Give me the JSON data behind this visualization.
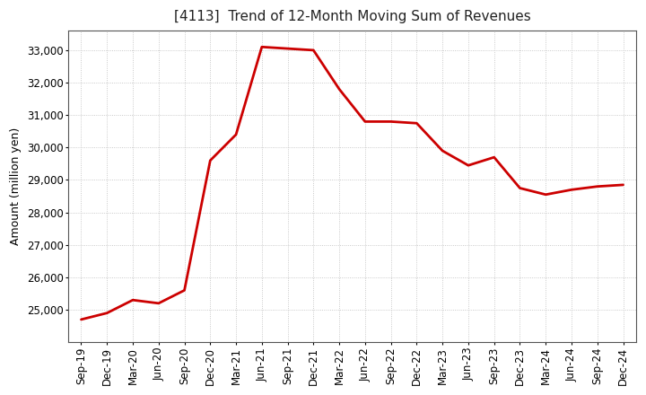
{
  "title": "[4113]  Trend of 12-Month Moving Sum of Revenues",
  "ylabel": "Amount (million yen)",
  "background_color": "#ffffff",
  "plot_bg_color": "#ffffff",
  "grid_color": "#bbbbbb",
  "line_color": "#cc0000",
  "x_labels": [
    "Sep-19",
    "Dec-19",
    "Mar-20",
    "Jun-20",
    "Sep-20",
    "Dec-20",
    "Mar-21",
    "Jun-21",
    "Sep-21",
    "Dec-21",
    "Mar-22",
    "Jun-22",
    "Sep-22",
    "Dec-22",
    "Mar-23",
    "Jun-23",
    "Sep-23",
    "Dec-23",
    "Mar-24",
    "Jun-24",
    "Sep-24",
    "Dec-24"
  ],
  "values": [
    24700,
    24900,
    25300,
    25200,
    25600,
    29600,
    30400,
    33100,
    33050,
    33000,
    31800,
    30800,
    30800,
    30750,
    29900,
    29450,
    29700,
    28750,
    28550,
    28700,
    28800,
    28850
  ],
  "ylim": [
    24000,
    33600
  ],
  "yticks": [
    25000,
    26000,
    27000,
    28000,
    29000,
    30000,
    31000,
    32000,
    33000
  ],
  "title_fontsize": 11,
  "ylabel_fontsize": 9,
  "tick_fontsize": 8.5,
  "line_width": 2.0
}
